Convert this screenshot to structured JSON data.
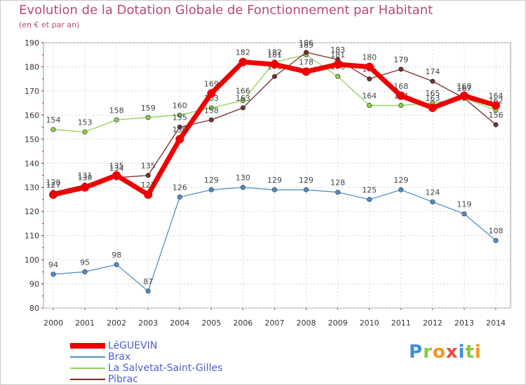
{
  "chart_data": {
    "type": "line",
    "title": "Evolution de la Dotation Globale de Fonctionnement par Habitant",
    "subtitle": "(en € et par an)",
    "xlabel": "",
    "ylabel": "",
    "ylim": [
      80,
      190
    ],
    "yticks": [
      80,
      90,
      100,
      110,
      120,
      130,
      140,
      150,
      160,
      170,
      180,
      190
    ],
    "categories": [
      "2000",
      "2001",
      "2002",
      "2003",
      "2004",
      "2005",
      "2006",
      "2007",
      "2008",
      "2009",
      "2010",
      "2011",
      "2012",
      "2013",
      "2014"
    ],
    "series": [
      {
        "name": "Brax",
        "color": "#4f8fcb",
        "values": [
          94,
          95,
          98,
          87,
          126,
          129,
          130,
          129,
          129,
          128,
          125,
          129,
          124,
          119,
          108
        ]
      },
      {
        "name": "La Salvetat-Saint-Gilles",
        "color": "#8fd14f",
        "values": [
          154,
          153,
          158,
          159,
          160,
          163,
          166,
          182,
          185,
          176,
          164,
          164,
          165,
          167,
          162
        ]
      },
      {
        "name": "Pibrac",
        "color": "#7a2a2a",
        "values": [
          128,
          131,
          134,
          135,
          155,
          158,
          163,
          176,
          186,
          183,
          175,
          179,
          174,
          167,
          156
        ]
      },
      {
        "name": "LéGUEVIN",
        "color": "#ee0000",
        "values": [
          127,
          130,
          135,
          127,
          150,
          169,
          182,
          181,
          178,
          181,
          180,
          168,
          163,
          168,
          164
        ]
      }
    ],
    "legend": [
      "LéGUEVIN",
      "Brax",
      "La Salvetat-Saint-Gilles",
      "Pibrac"
    ],
    "grid": true,
    "legend_position": "bottom-left"
  },
  "branding": {
    "logo_text": [
      "P",
      "r",
      "o",
      "x",
      "i",
      "t",
      "i"
    ],
    "logo_colors": [
      "#3a8ee0",
      "#8cc63f",
      "#f7941d",
      "#e84c3d",
      "#3a8ee0",
      "#8cc63f",
      "#f7941d"
    ]
  }
}
